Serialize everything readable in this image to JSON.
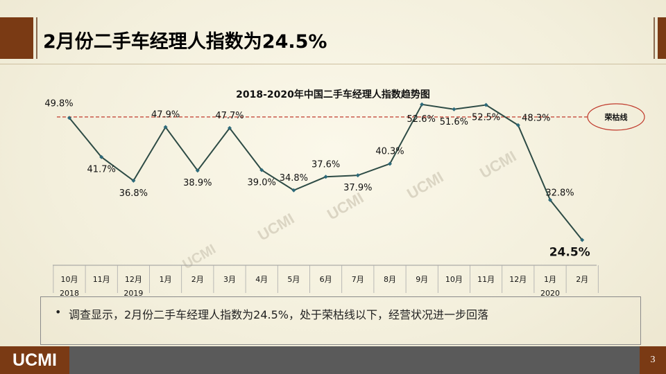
{
  "page": {
    "title": "2月份二手车经理人指数为24.5%",
    "page_number": "3",
    "logo": "UCMI",
    "note": "调查显示，2月份二手车经理人指数为24.5%，处于荣枯线以下，经营状况进一步回落",
    "note_bullet": "•"
  },
  "watermarks": [
    "UCMI",
    "UCMI",
    "UCMI",
    "UCMI",
    "UCMI"
  ],
  "colors": {
    "brand": "#7a3a14",
    "line": "#2d4b45",
    "threshold": "#c0392b",
    "footer": "#5a5a5a"
  },
  "chart_data": {
    "type": "line",
    "title": "2018-2020年中国二手车经理人指数趋势图",
    "categories": [
      "10月",
      "11月",
      "12月",
      "1月",
      "2月",
      "3月",
      "4月",
      "5月",
      "6月",
      "7月",
      "8月",
      "9月",
      "10月",
      "11月",
      "12月",
      "1月",
      "2月"
    ],
    "year_labels": [
      {
        "index": 0,
        "label": "2018"
      },
      {
        "index": 2,
        "label": "2019"
      },
      {
        "index": 15,
        "label": "2020"
      }
    ],
    "series": [
      {
        "values": [
          49.8,
          41.7,
          36.8,
          47.9,
          38.9,
          47.7,
          39.0,
          34.8,
          37.6,
          37.9,
          40.3,
          52.6,
          51.6,
          52.5,
          48.3,
          32.8,
          24.5
        ]
      }
    ],
    "data_labels": [
      "49.8%",
      "41.7%",
      "36.8%",
      "47.9%",
      "38.9%",
      "47.7%",
      "39.0%",
      "34.8%",
      "37.6%",
      "37.9%",
      "40.3%",
      "52.6%",
      "51.6%",
      "52.5%",
      "48.3%",
      "32.8%",
      "24.5%"
    ],
    "threshold": {
      "value": 50,
      "label": "荣枯线"
    },
    "ylim": [
      24,
      53
    ]
  }
}
